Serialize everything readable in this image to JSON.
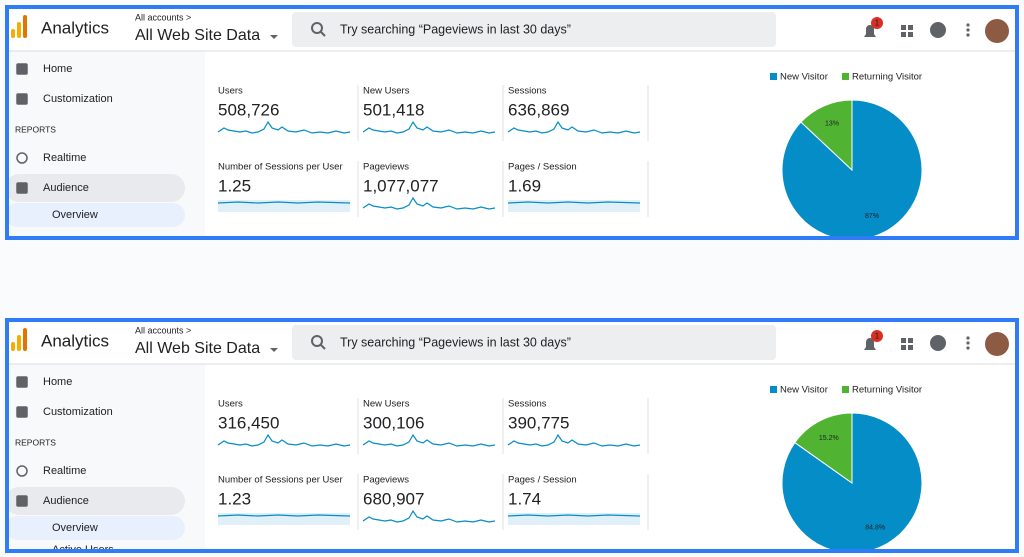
{
  "panels": [
    {
      "header": {
        "app": "Analytics",
        "breadcrumb": "All accounts >",
        "property": "All Web Site Data",
        "search": "Try searching “Pageviews in last 30 days”",
        "notifications": "1"
      },
      "nav": [
        "Home",
        "Customization",
        "REPORTS",
        "Realtime",
        "Audience",
        "Overview"
      ],
      "metrics": [
        {
          "label": "Users",
          "value": "508,726"
        },
        {
          "label": "New Users",
          "value": "501,418"
        },
        {
          "label": "Sessions",
          "value": "636,869"
        },
        {
          "label": "Number of Sessions per User",
          "value": "1.25"
        },
        {
          "label": "Pageviews",
          "value": "1,077,077"
        },
        {
          "label": "Pages / Session",
          "value": "1.69"
        }
      ],
      "pie": {
        "series": [
          {
            "name": "New Visitor",
            "color": "#058dc7",
            "value": 87
          },
          {
            "name": "Returning Visitor",
            "color": "#50b432",
            "value": 13
          }
        ],
        "value_labels": [
          "87%",
          "13%"
        ]
      }
    },
    {
      "header": {
        "app": "Analytics",
        "breadcrumb": "All accounts >",
        "property": "All Web Site Data",
        "search": "Try searching “Pageviews in last 30 days”",
        "notifications": "1"
      },
      "nav": [
        "Home",
        "Customization",
        "REPORTS",
        "Realtime",
        "Audience",
        "Overview",
        "Active Users"
      ],
      "metrics": [
        {
          "label": "Users",
          "value": "316,450"
        },
        {
          "label": "New Users",
          "value": "300,106"
        },
        {
          "label": "Sessions",
          "value": "390,775"
        },
        {
          "label": "Number of Sessions per User",
          "value": "1.23"
        },
        {
          "label": "Pageviews",
          "value": "680,907"
        },
        {
          "label": "Pages / Session",
          "value": "1.74"
        }
      ],
      "pie": {
        "series": [
          {
            "name": "New Visitor",
            "color": "#058dc7",
            "value": 84.8
          },
          {
            "name": "Returning Visitor",
            "color": "#50b432",
            "value": 15.2
          }
        ],
        "value_labels": [
          "84.8%",
          "15.2%"
        ]
      }
    }
  ]
}
